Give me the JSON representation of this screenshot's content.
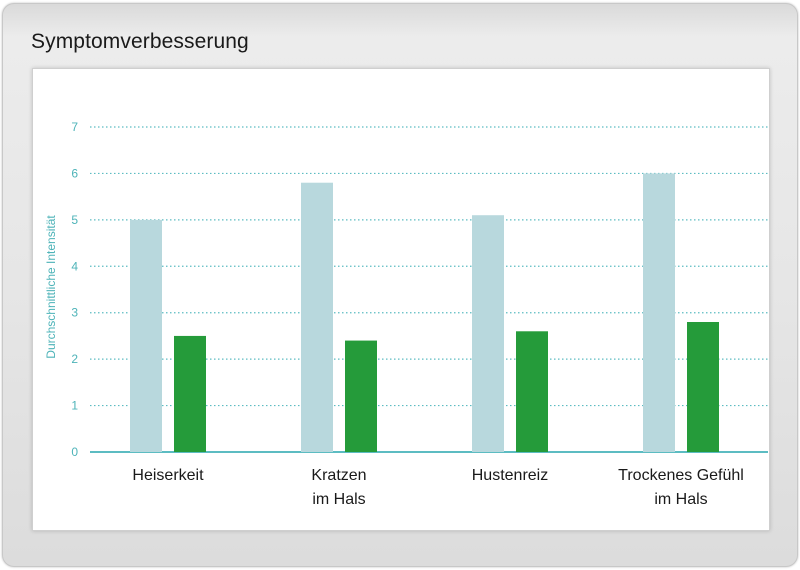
{
  "title": "Symptomverbesserung",
  "colors": {
    "series_before": "#b8d8dd",
    "series_after": "#259b3a",
    "grid": "#5cbcc2",
    "axis_text": "#4db3b8"
  },
  "chart_data": {
    "type": "bar",
    "title": "Symptomverbesserung",
    "ylabel": "Durchschnittliche Intensität",
    "xlabel": "",
    "ylim": [
      0,
      7
    ],
    "yticks": [
      0,
      1,
      2,
      3,
      4,
      5,
      6,
      7
    ],
    "grid": true,
    "categories": [
      [
        "Heiserkeit"
      ],
      [
        "Kratzen",
        "im Hals"
      ],
      [
        "Hustenreiz"
      ],
      [
        "Trockenes Gefühl",
        "im Hals"
      ]
    ],
    "series": [
      {
        "values": [
          5.0,
          5.8,
          5.1,
          6.0
        ]
      },
      {
        "values": [
          2.5,
          2.4,
          2.6,
          2.8
        ]
      }
    ]
  }
}
